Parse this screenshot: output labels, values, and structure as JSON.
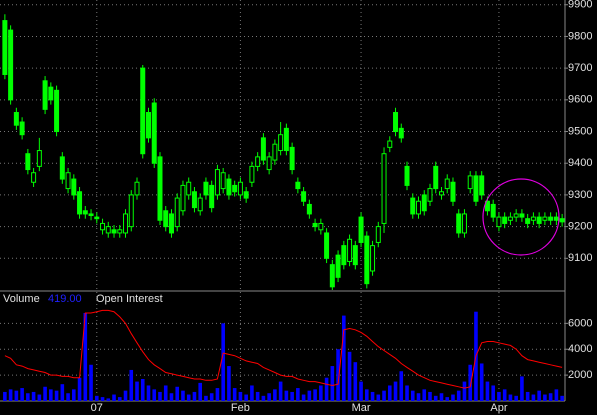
{
  "chart_data": [
    {
      "type": "candlestick",
      "categories": [
        null,
        null,
        null,
        null,
        null,
        null,
        null,
        null,
        null,
        null,
        null,
        null,
        null,
        null,
        null,
        null,
        "07",
        null,
        null,
        null,
        null,
        null,
        null,
        null,
        null,
        null,
        null,
        null,
        null,
        null,
        null,
        null,
        null,
        null,
        null,
        null,
        null,
        null,
        null,
        null,
        null,
        "Feb",
        null,
        null,
        null,
        null,
        null,
        null,
        null,
        null,
        null,
        null,
        null,
        null,
        null,
        null,
        null,
        null,
        null,
        null,
        null,
        null,
        "Mar",
        null,
        null,
        null,
        null,
        null,
        null,
        null,
        null,
        null,
        null,
        null,
        null,
        null,
        null,
        null,
        null,
        null,
        null,
        null,
        null,
        null,
        null,
        null,
        "Apr",
        null,
        null,
        null,
        null,
        null,
        null,
        null,
        null,
        null,
        null,
        null
      ],
      "open": [
        9850,
        9820,
        9560,
        9530,
        9430,
        9340,
        9390,
        9660,
        9640,
        9630,
        9420,
        9320,
        9350,
        9310,
        9250,
        9240,
        9230,
        9190,
        9180,
        9190,
        9180,
        9180,
        9200,
        9300,
        9700,
        9560,
        9590,
        9420,
        9250,
        9240,
        9200,
        9250,
        9300,
        9310,
        9250,
        9340,
        9330,
        9300,
        9320,
        9350,
        9330,
        9300,
        9310,
        9340,
        9390,
        9480,
        9380,
        9410,
        9440,
        9510,
        9450,
        9340,
        9310,
        9270,
        9210,
        9190,
        9180,
        9080,
        9110,
        9140,
        9090,
        9140,
        9230,
        9170,
        9060,
        9150,
        9210,
        9450,
        9560,
        9510,
        9390,
        9290,
        9240,
        9300,
        9280,
        9390,
        9300,
        9320,
        9340,
        9240,
        9180,
        9320,
        9360,
        9360,
        9280,
        9270,
        9200,
        9230,
        9220,
        9230,
        9240,
        9225,
        9220,
        9230,
        9220,
        9230,
        9230,
        9225
      ],
      "high": [
        9870,
        9835,
        9575,
        9545,
        9445,
        9385,
        9480,
        9675,
        9655,
        9645,
        9435,
        9385,
        9365,
        9325,
        9265,
        9255,
        9245,
        9225,
        9215,
        9205,
        9205,
        9255,
        9315,
        9355,
        9710,
        9575,
        9605,
        9435,
        9265,
        9255,
        9305,
        9345,
        9355,
        9325,
        9305,
        9355,
        9345,
        9395,
        9385,
        9365,
        9345,
        9355,
        9325,
        9405,
        9435,
        9495,
        9435,
        9475,
        9530,
        9525,
        9465,
        9355,
        9325,
        9285,
        9225,
        9225,
        9195,
        9095,
        9125,
        9155,
        9175,
        9155,
        9245,
        9185,
        9155,
        9215,
        9450,
        9485,
        9575,
        9525,
        9405,
        9305,
        9295,
        9315,
        9335,
        9405,
        9325,
        9365,
        9355,
        9255,
        9255,
        9375,
        9375,
        9375,
        9295,
        9285,
        9245,
        9245,
        9245,
        9255,
        9255,
        9240,
        9245,
        9245,
        9245,
        9245,
        9245,
        9240
      ],
      "low": [
        9665,
        9585,
        9505,
        9475,
        9365,
        9325,
        9375,
        9555,
        9585,
        9485,
        9335,
        9305,
        9285,
        9225,
        9225,
        9220,
        9210,
        9175,
        9165,
        9165,
        9165,
        9165,
        9185,
        9285,
        9415,
        9465,
        9385,
        9205,
        9185,
        9165,
        9185,
        9235,
        9285,
        9245,
        9235,
        9285,
        9245,
        9285,
        9305,
        9285,
        9295,
        9285,
        9275,
        9325,
        9375,
        9395,
        9365,
        9395,
        9425,
        9425,
        9365,
        9305,
        9265,
        9225,
        9185,
        9175,
        9085,
        9000,
        9025,
        9065,
        9075,
        9065,
        9135,
        9005,
        9045,
        9135,
        9180,
        9435,
        9485,
        9465,
        9315,
        9225,
        9225,
        9235,
        9265,
        9305,
        9285,
        9305,
        9265,
        9165,
        9165,
        9305,
        9265,
        9285,
        9235,
        9215,
        9185,
        9195,
        9205,
        9215,
        9215,
        9195,
        9205,
        9195,
        9205,
        9205,
        9205,
        9200
      ],
      "close": [
        9680,
        9600,
        9520,
        9490,
        9380,
        9370,
        9440,
        9570,
        9600,
        9500,
        9350,
        9370,
        9300,
        9240,
        9240,
        9235,
        9225,
        9210,
        9200,
        9180,
        9190,
        9240,
        9300,
        9340,
        9430,
        9480,
        9400,
        9220,
        9200,
        9180,
        9290,
        9330,
        9340,
        9260,
        9290,
        9300,
        9260,
        9380,
        9370,
        9300,
        9310,
        9340,
        9290,
        9390,
        9420,
        9410,
        9420,
        9460,
        9490,
        9440,
        9380,
        9320,
        9280,
        9240,
        9200,
        9210,
        9100,
        9010,
        9040,
        9080,
        9160,
        9080,
        9150,
        9020,
        9140,
        9200,
        9430,
        9470,
        9500,
        9480,
        9330,
        9240,
        9280,
        9250,
        9320,
        9320,
        9310,
        9350,
        9280,
        9180,
        9240,
        9360,
        9280,
        9300,
        9250,
        9230,
        9230,
        9210,
        9230,
        9240,
        9230,
        9210,
        9230,
        9210,
        9230,
        9220,
        9220,
        9215
      ],
      "color": "#00ff00",
      "ylim": [
        9000,
        9915
      ],
      "yticks": [
        9100,
        9200,
        9300,
        9400,
        9500,
        9600,
        9700,
        9800,
        9900
      ],
      "grid": true
    },
    {
      "type": "volume",
      "volume_readout": "419.00",
      "series": [
        {
          "name": "Volume",
          "color": "#0000ff",
          "values": [
            700,
            900,
            800,
            1000,
            600,
            700,
            500,
            1100,
            900,
            800,
            1300,
            600,
            900,
            1800,
            6800,
            2800,
            400,
            300,
            200,
            500,
            300,
            800,
            2400,
            1500,
            1700,
            1200,
            900,
            700,
            1200,
            600,
            1100,
            800,
            500,
            700,
            1400,
            400,
            600,
            1000,
            6000,
            2700,
            1000,
            700,
            500,
            1200,
            700,
            400,
            600,
            900,
            1500,
            800,
            700,
            1000,
            500,
            800,
            900,
            1200,
            1800,
            2700,
            4000,
            6600,
            3800,
            3000,
            1500,
            900,
            700,
            500,
            800,
            1200,
            1500,
            2300,
            1200,
            800,
            600,
            900,
            700,
            400,
            600,
            300,
            500,
            800,
            1500,
            2800,
            6900,
            2900,
            1500,
            1200,
            700,
            900,
            500,
            400,
            1900,
            700,
            500,
            800,
            500,
            600,
            900,
            400
          ]
        },
        {
          "name": "Open Interest",
          "color": "#ff0000",
          "values": [
            3500,
            3300,
            2800,
            2700,
            2500,
            2400,
            2300,
            2200,
            2000,
            2000,
            1900,
            1900,
            1800,
            1800,
            6800,
            6800,
            6900,
            7000,
            7000,
            6900,
            6500,
            6000,
            5200,
            4500,
            3800,
            3200,
            2800,
            2500,
            2200,
            2100,
            2000,
            1900,
            1800,
            1700,
            1700,
            1600,
            1600,
            1700,
            3700,
            3600,
            3500,
            3300,
            3100,
            3000,
            2900,
            2600,
            2400,
            2200,
            2000,
            1900,
            1900,
            1700,
            1600,
            1500,
            1500,
            1400,
            1300,
            1200,
            1300,
            5500,
            5600,
            5500,
            5300,
            5000,
            4600,
            4200,
            3900,
            3600,
            3300,
            2900,
            2600,
            2300,
            2000,
            1800,
            1600,
            1500,
            1400,
            1300,
            1200,
            1100,
            1000,
            1100,
            3500,
            4500,
            4600,
            4600,
            4500,
            4400,
            4300,
            4000,
            3500,
            3200,
            3100,
            3000,
            2900,
            2800,
            2700,
            2600
          ]
        }
      ],
      "ylim": [
        0,
        8500
      ],
      "yticks": [
        2000,
        4000,
        6000
      ],
      "grid": true
    }
  ]
}
